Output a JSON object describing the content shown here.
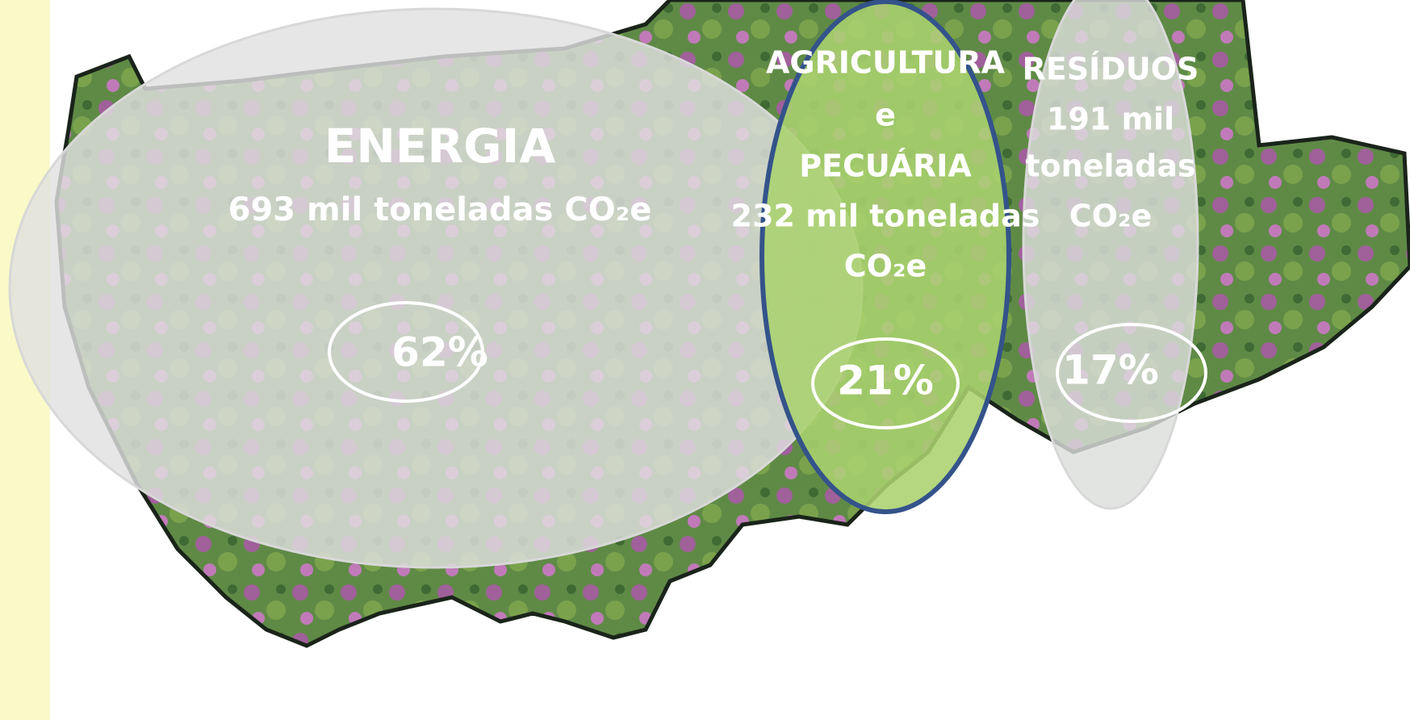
{
  "sectors": [
    {
      "name_lines": [
        "ENERGIA"
      ],
      "amount_lines": [
        "693 mil toneladas"
      ],
      "unit": "CO₂e",
      "share": "62%"
    },
    {
      "name_lines": [
        "AGRICULTURA",
        "e",
        "PECUÁRIA"
      ],
      "amount_lines": [
        "232 mil toneladas"
      ],
      "unit": "CO₂e",
      "share": "21%"
    },
    {
      "name_lines": [
        "RESÍDUOS"
      ],
      "amount_lines": [
        "191 mil",
        "toneladas"
      ],
      "unit": "CO₂e",
      "share": "17%"
    }
  ]
}
